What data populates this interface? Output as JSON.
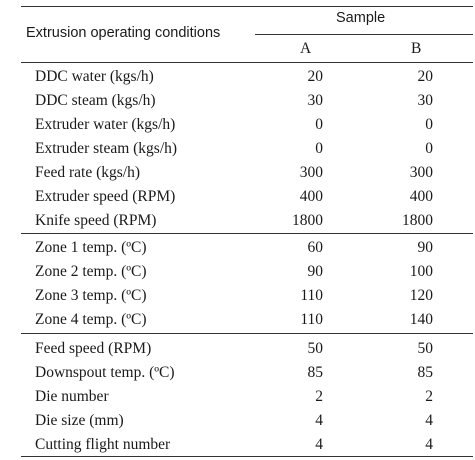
{
  "table": {
    "header": {
      "conditions_label": "Extrusion operating conditions",
      "sample_label": "Sample",
      "col_a": "A",
      "col_b": "B"
    },
    "groups": [
      {
        "rows": [
          {
            "label": "DDC water (kgs/h)",
            "a": "20",
            "b": "20"
          },
          {
            "label": "DDC steam (kgs/h)",
            "a": "30",
            "b": "30"
          },
          {
            "label": "Extruder water (kgs/h)",
            "a": "0",
            "b": "0"
          },
          {
            "label": "Extruder steam (kgs/h)",
            "a": "0",
            "b": "0"
          },
          {
            "label": "Feed rate (kgs/h)",
            "a": "300",
            "b": "300"
          },
          {
            "label": "Extruder speed (RPM)",
            "a": "400",
            "b": "400"
          },
          {
            "label": "Knife speed (RPM)",
            "a": "1800",
            "b": "1800"
          }
        ]
      },
      {
        "rows": [
          {
            "label": "Zone 1 temp. (ºC)",
            "a": "60",
            "b": "90"
          },
          {
            "label": "Zone 2 temp. (ºC)",
            "a": "90",
            "b": "100"
          },
          {
            "label": "Zone 3 temp. (ºC)",
            "a": "110",
            "b": "120"
          },
          {
            "label": "Zone 4 temp. (ºC)",
            "a": "110",
            "b": "140"
          }
        ]
      },
      {
        "rows": [
          {
            "label": "Feed speed (RPM)",
            "a": "50",
            "b": "50"
          },
          {
            "label": "Downspout temp. (ºC)",
            "a": "85",
            "b": "85"
          },
          {
            "label": "Die number",
            "a": "2",
            "b": "2"
          },
          {
            "label": "Die size (mm)",
            "a": "4",
            "b": "4"
          },
          {
            "label": "Cutting flight number",
            "a": "4",
            "b": "4"
          }
        ]
      }
    ]
  }
}
